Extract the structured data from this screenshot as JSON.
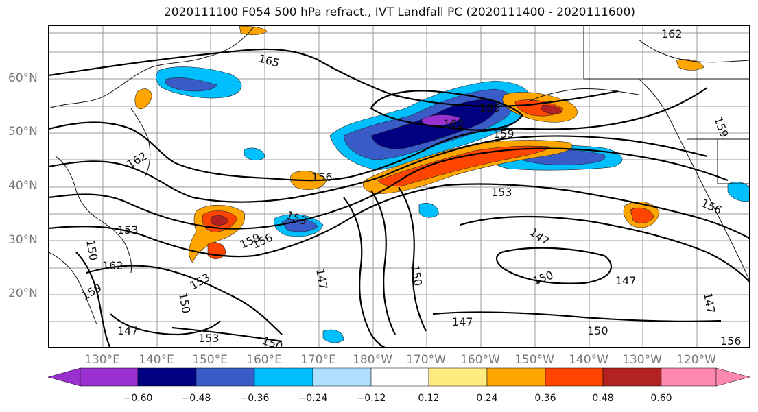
{
  "title": "2020111100 F054 500 hPa refract., IVT Landfall PC (2020111400 - 2020111600)",
  "axes": {
    "lat_labels": [
      "60°N",
      "50°N",
      "40°N",
      "30°N",
      "20°N"
    ],
    "lon_labels": [
      "130°E",
      "140°E",
      "150°E",
      "160°E",
      "170°E",
      "180°W",
      "170°W",
      "160°W",
      "150°W",
      "140°W",
      "130°W",
      "120°W"
    ]
  },
  "colorbar": {
    "ticks": [
      "−0.60",
      "−0.48",
      "−0.36",
      "−0.24",
      "−0.12",
      "0.12",
      "0.24",
      "0.36",
      "0.48",
      "0.60"
    ],
    "colors": [
      "#9b30d0",
      "#000080",
      "#3a5cc8",
      "#00bfff",
      "#b0e0ff",
      "#ffffff",
      "#ffeb80",
      "#ffa500",
      "#ff4500",
      "#b22222",
      "#ff88b0"
    ]
  },
  "contour_labels": [
    "165",
    "162",
    "159",
    "156",
    "153",
    "150",
    "147"
  ]
}
